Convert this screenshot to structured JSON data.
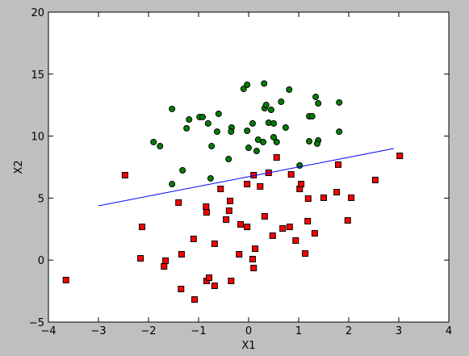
{
  "chart_data": {
    "type": "scatter",
    "x_label": "X1",
    "y_label": "X2",
    "xlim": [
      -4,
      4
    ],
    "ylim": [
      -5,
      20
    ],
    "xticks": [
      {
        "value": -4,
        "label": "−4"
      },
      {
        "value": -3,
        "label": "−3"
      },
      {
        "value": -2,
        "label": "−2"
      },
      {
        "value": -1,
        "label": "−1"
      },
      0,
      1,
      2,
      3,
      4
    ],
    "yticks": [
      {
        "value": -5,
        "label": "−5"
      },
      0,
      5,
      10,
      15,
      20
    ],
    "grid": false,
    "series": [
      {
        "mark": "circle",
        "color": "#008000",
        "x": [
          -1.53,
          -0.03,
          -0.1,
          0.31,
          0.81,
          0.65,
          0.32,
          0.35,
          0.45,
          1.34,
          1.39,
          1.81,
          -1.19,
          -0.98,
          -0.92,
          -0.6,
          -0.81,
          -1.24,
          -0.34,
          -0.35,
          -0.63,
          0.08,
          0.4,
          0.5,
          1.21,
          1.27,
          0.74,
          -0.03,
          0.19,
          0.29,
          0.5,
          0.56,
          1.21,
          1.39,
          1.37,
          1.81,
          -1.9,
          -1.77,
          -0.74,
          0.0,
          0.16,
          -0.4,
          -1.32,
          -0.76,
          -1.53,
          1.02
        ],
        "values": [
          12.19,
          14.14,
          13.81,
          14.24,
          13.75,
          12.77,
          12.25,
          12.51,
          12.12,
          13.16,
          12.64,
          12.71,
          11.34,
          11.54,
          11.54,
          11.8,
          11.02,
          10.63,
          10.69,
          10.36,
          10.36,
          11.02,
          11.08,
          11.02,
          11.6,
          11.6,
          10.69,
          10.43,
          9.71,
          9.52,
          9.91,
          9.52,
          9.58,
          9.65,
          9.39,
          10.36,
          9.52,
          9.19,
          9.19,
          9.06,
          8.8,
          8.15,
          7.24,
          6.59,
          6.13,
          7.63
        ]
      },
      {
        "mark": "square",
        "color": "#ff0000",
        "x": [
          -3.65,
          -2.47,
          -2.13,
          -2.16,
          -1.66,
          -1.69,
          -1.4,
          -1.34,
          -1.35,
          -1.1,
          -1.08,
          -0.85,
          -0.84,
          -0.84,
          -0.79,
          -0.68,
          -0.68,
          -0.56,
          -0.45,
          -0.39,
          -0.37,
          -0.35,
          -0.19,
          -0.16,
          -0.03,
          -0.03,
          0.08,
          0.1,
          0.13,
          0.1,
          0.23,
          0.32,
          0.4,
          0.48,
          0.56,
          0.68,
          0.82,
          0.85,
          0.94,
          1.02,
          1.05,
          1.13,
          1.18,
          1.19,
          1.32,
          1.5,
          1.76,
          1.79,
          1.98,
          2.05,
          2.53,
          3.02
        ],
        "values": [
          -1.61,
          6.85,
          2.68,
          0.14,
          -0.05,
          -0.51,
          4.64,
          0.47,
          -2.33,
          1.71,
          -3.18,
          4.31,
          3.85,
          -1.68,
          -1.42,
          1.32,
          -2.07,
          5.74,
          3.27,
          3.98,
          4.77,
          -1.68,
          0.47,
          2.88,
          2.68,
          6.13,
          0.08,
          -0.64,
          0.92,
          6.85,
          5.94,
          3.53,
          7.04,
          1.97,
          8.28,
          2.55,
          2.68,
          6.91,
          1.58,
          5.74,
          6.13,
          0.53,
          3.14,
          4.96,
          2.16,
          5.03,
          5.48,
          7.7,
          3.2,
          5.03,
          6.46,
          8.41
        ]
      },
      {
        "mark": "line",
        "color": "#0000ff",
        "x": [
          -3,
          2.9
        ],
        "values": [
          4.375,
          9.0
        ]
      }
    ]
  }
}
